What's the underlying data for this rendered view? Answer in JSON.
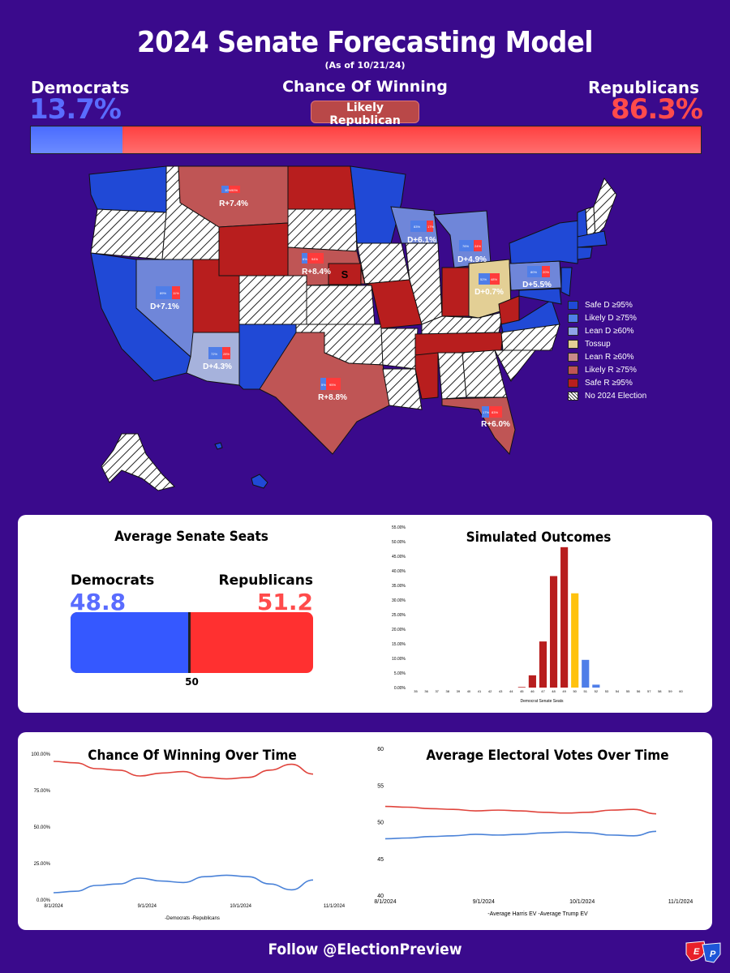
{
  "header": {
    "title": "2024 Senate Forecasting Model",
    "as_of": "(As of 10/21/24)",
    "dem_label": "Democrats",
    "rep_label": "Republicans",
    "chance_label": "Chance Of Winning",
    "dem_pct": "13.7%",
    "rep_pct": "86.3%",
    "rating": "Likely Republican",
    "dem_share": 0.137
  },
  "map": {
    "state_labels": [
      {
        "id": "mt",
        "text": "R+7.4%",
        "d": "10%",
        "r": "90%"
      },
      {
        "id": "wi",
        "text": "D+6.1%",
        "d": "83%",
        "r": "17%"
      },
      {
        "id": "mi",
        "text": "D+4.9%",
        "d": "76%",
        "r": "24%"
      },
      {
        "id": "ne",
        "text": "R+8.4%",
        "d": "6%",
        "r": "94%"
      },
      {
        "id": "oh",
        "text": "D+0.7%",
        "d": "52%",
        "r": "48%"
      },
      {
        "id": "pa",
        "text": "D+5.5%",
        "d": "80%",
        "r": "20%"
      },
      {
        "id": "nv",
        "text": "D+7.1%",
        "d": "89%",
        "r": "11%"
      },
      {
        "id": "az",
        "text": "D+4.3%",
        "d": "72%",
        "r": "28%"
      },
      {
        "id": "tx",
        "text": "R+8.8%",
        "d": "5%",
        "r": "95%"
      },
      {
        "id": "fl",
        "text": "R+6.0%",
        "d": "17%",
        "r": "83%"
      }
    ],
    "special_label": "S",
    "legend": [
      {
        "label": "Safe D ≥95%",
        "color": "#2049d6"
      },
      {
        "label": "Likely D ≥75%",
        "color": "#4f7ee8"
      },
      {
        "label": "Lean D ≥60%",
        "color": "#8fa3e8"
      },
      {
        "label": "Tossup",
        "color": "#e3cf95"
      },
      {
        "label": "Lean R ≥60%",
        "color": "#c98a8a"
      },
      {
        "label": "Likely R ≥75%",
        "color": "#bf5555"
      },
      {
        "label": "Safe R ≥95%",
        "color": "#b81e1e"
      },
      {
        "label": "No 2024 Election",
        "color": "hatch"
      }
    ]
  },
  "seats": {
    "title": "Average Senate Seats",
    "dem_label": "Democrats",
    "rep_label": "Republicans",
    "dem_value": "48.8",
    "rep_value": "51.2",
    "dem_seats": 48.8,
    "midline": "50"
  },
  "chart_data": [
    {
      "type": "bar",
      "title": "Simulated Outcomes",
      "xlabel": "Democrat Senate Seats",
      "ylabel": "",
      "categories": [
        "35",
        "36",
        "37",
        "38",
        "39",
        "40",
        "41",
        "42",
        "43",
        "44",
        "45",
        "46",
        "47",
        "48",
        "49",
        "50",
        "51",
        "52",
        "53",
        "54",
        "55",
        "56",
        "57",
        "58",
        "59",
        "60"
      ],
      "values": [
        0,
        0,
        0,
        0,
        0,
        0,
        0,
        0,
        0,
        0,
        0.2,
        4.2,
        15.8,
        38.2,
        48.1,
        32.3,
        9.5,
        1.0,
        0,
        0,
        0,
        0,
        0,
        0,
        0,
        0
      ],
      "colors": [
        "#b81e1e",
        "#b81e1e",
        "#b81e1e",
        "#b81e1e",
        "#b81e1e",
        "#b81e1e",
        "#b81e1e",
        "#b81e1e",
        "#b81e1e",
        "#b81e1e",
        "#b81e1e",
        "#b81e1e",
        "#b81e1e",
        "#b81e1e",
        "#b81e1e",
        "#ffc20e",
        "#4f7ee8",
        "#4f7ee8",
        "#4f7ee8",
        "#4f7ee8",
        "#4f7ee8",
        "#4f7ee8",
        "#4f7ee8",
        "#4f7ee8",
        "#4f7ee8",
        "#4f7ee8"
      ],
      "ylim": [
        0,
        55
      ],
      "yticks": [
        "0.00%",
        "5.00%",
        "10.00%",
        "15.00%",
        "20.00%",
        "25.00%",
        "30.00%",
        "35.00%",
        "40.00%",
        "45.00%",
        "50.00%",
        "55.00%"
      ]
    },
    {
      "type": "line",
      "title": "Chance Of Winning Over Time",
      "x_ticks": [
        "8/1/2024",
        "9/1/2024",
        "10/1/2024",
        "11/1/2024"
      ],
      "yticks": [
        "0.00%",
        "25.00%",
        "50.00%",
        "75.00%",
        "100.00%"
      ],
      "ylim": [
        0,
        100
      ],
      "x": [
        "8/1",
        "8/8",
        "8/15",
        "8/22",
        "8/29",
        "9/5",
        "9/12",
        "9/19",
        "9/26",
        "10/3",
        "10/10",
        "10/17",
        "10/21"
      ],
      "series": [
        {
          "name": "Democrats",
          "color": "#4a82d8",
          "values": [
            5,
            6,
            10,
            11,
            15,
            13,
            12,
            16,
            17,
            16,
            11,
            7,
            13.7
          ]
        },
        {
          "name": "Republicans",
          "color": "#e0443c",
          "values": [
            95,
            94,
            90,
            89,
            85,
            87,
            88,
            84,
            83,
            84,
            89,
            93,
            86.3
          ]
        }
      ],
      "legend": "-Democrats -Republicans"
    },
    {
      "type": "line",
      "title": "Average Electoral Votes Over Time",
      "x_ticks": [
        "8/1/2024",
        "9/1/2024",
        "10/1/2024",
        "11/1/2024"
      ],
      "yticks": [
        "40",
        "45",
        "50",
        "55",
        "60"
      ],
      "ylim": [
        40,
        60
      ],
      "x": [
        "8/1",
        "8/8",
        "8/15",
        "8/22",
        "8/29",
        "9/5",
        "9/12",
        "9/19",
        "9/26",
        "10/3",
        "10/10",
        "10/17",
        "10/21"
      ],
      "series": [
        {
          "name": "Average Harris EV",
          "color": "#4a82d8",
          "values": [
            47.8,
            47.9,
            48.1,
            48.2,
            48.4,
            48.3,
            48.4,
            48.6,
            48.7,
            48.6,
            48.3,
            48.2,
            48.8
          ]
        },
        {
          "name": "Average Trump EV",
          "color": "#e0443c",
          "values": [
            52.2,
            52.1,
            51.9,
            51.8,
            51.6,
            51.7,
            51.6,
            51.4,
            51.3,
            51.4,
            51.7,
            51.8,
            51.2
          ]
        }
      ],
      "legend": "-Average Harris EV -Average Trump EV"
    }
  ],
  "footer": {
    "text": "Follow @ElectionPreview",
    "logo_e": "E",
    "logo_p": "P"
  }
}
